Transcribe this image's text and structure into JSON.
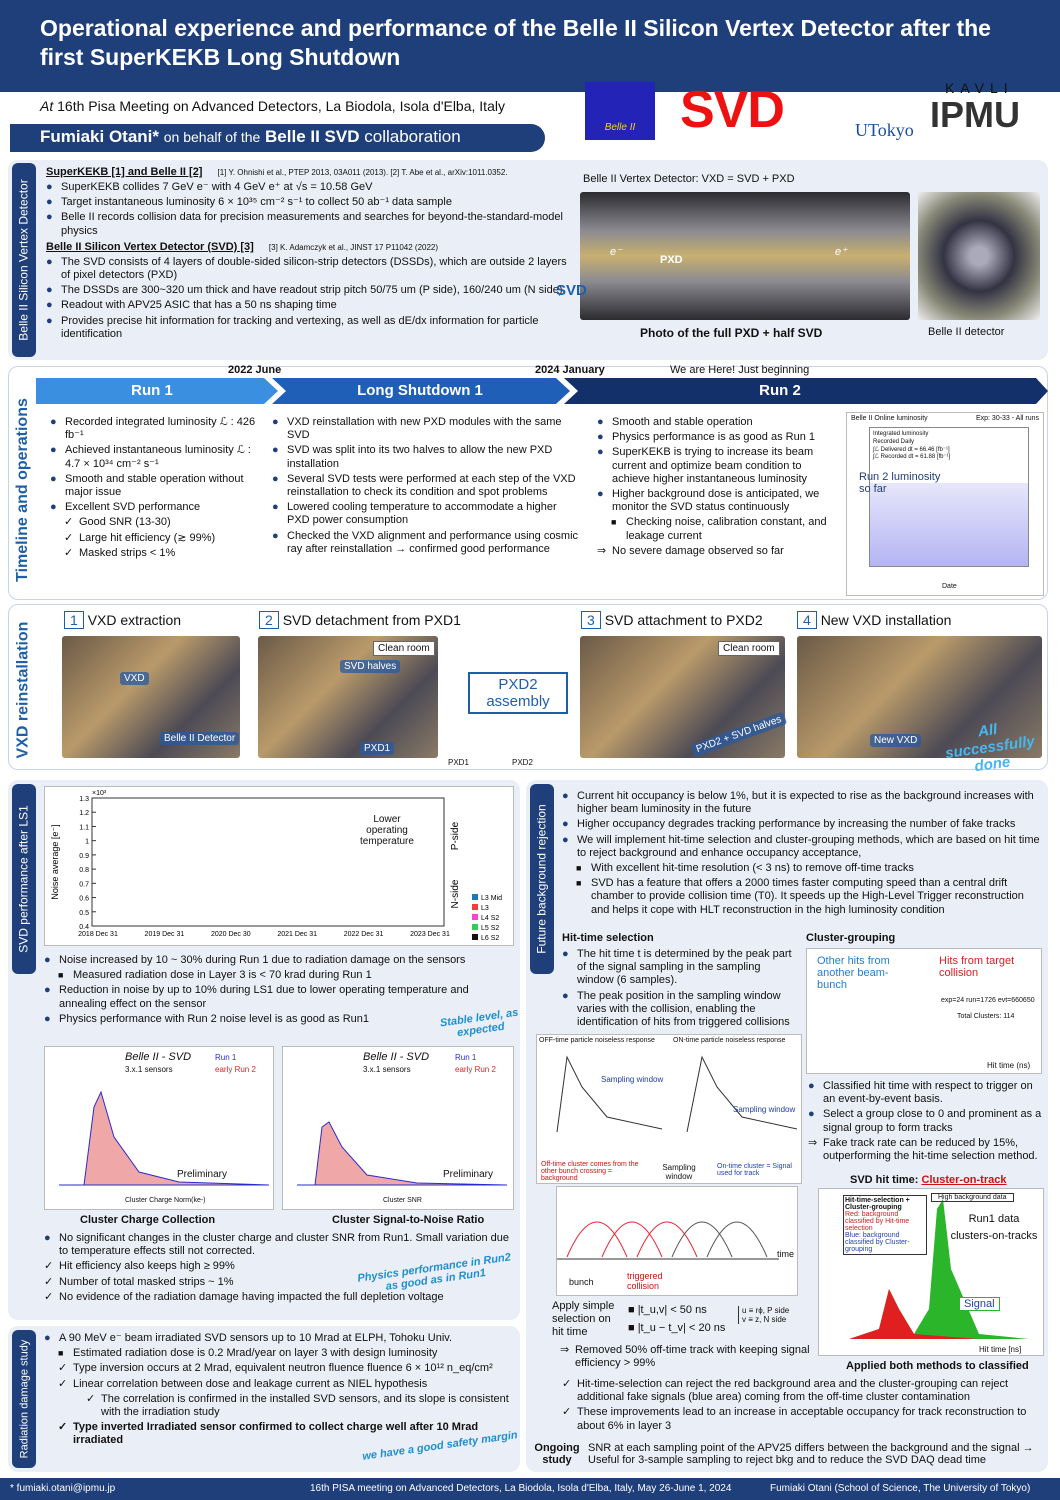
{
  "header": {
    "title": "Operational experience and performance of the Belle II Silicon Vertex Detector after the first SuperKEKB Long Shutdown",
    "venue_prefix": "At",
    "venue": "16th Pisa Meeting on Advanced Detectors, La Biodola, Isola d'Elba, Italy",
    "author": "Fumiaki Otani*",
    "on_behalf": "on behalf of the",
    "collaboration": "Belle II SVD",
    "collab_word": "collaboration",
    "logos": [
      "Belle II",
      "SVD",
      "UTokyo",
      "KAVLI",
      "IPMU"
    ]
  },
  "overview": {
    "side": "Belle II Silicon Vertex Detector",
    "heading1": "SuperKEKB [1] and Belle II [2]",
    "refs1": "[1] Y. Ohnishi et al., PTEP 2013, 03A011 (2013).   [2] T. Abe et al., arXiv:1011.0352.",
    "items1": [
      "SuperKEKB collides 7 GeV e⁻ with 4 GeV e⁺ at √s = 10.58 GeV",
      "Target instantaneous luminosity 6 × 10³⁵ cm⁻² s⁻¹ to collect 50 ab⁻¹ data sample",
      "Belle II records collision data for precision measurements and searches for beyond-the-standard-model physics"
    ],
    "heading2": "Belle II Silicon Vertex Detector (SVD) [3]",
    "refs2": "[3] K. Adamczyk et al., JINST 17 P11042 (2022)",
    "items2": [
      "The SVD consists of 4 layers of double-sided silicon-strip detectors (DSSDs), which are outside 2 layers of pixel detectors (PXD)",
      "The DSSDs are 300~320 um thick and have readout strip pitch 50/75 um (P side), 160/240 um (N side)",
      "Readout with APV25 ASIC that has a 50 ns shaping time",
      "Provides precise hit information for tracking and vertexing, as well as dE/dx information for particle identification"
    ],
    "figure_title": "Belle II Vertex Detector: VXD = SVD + PXD",
    "label_pxd": "PXD",
    "label_svd": "SVD",
    "label_em": "e⁻",
    "label_ep": "e⁺",
    "caption_photo": "Photo of the full PXD + half SVD",
    "caption_detector": "Belle II detector"
  },
  "timeline": {
    "side": "Timeline and operations",
    "date1": "2022 June",
    "date2": "2024 January",
    "here": "We are Here! Just beginning",
    "phases": [
      "Run 1",
      "Long Shutdown 1",
      "Run 2"
    ],
    "run1": [
      "Recorded integrated luminosity ℒ : 426 fb⁻¹",
      "Achieved instantaneous luminosity ℒ : 4.7 × 10³⁴ cm⁻² s⁻¹",
      "Smooth and stable operation without major issue",
      "Excellent SVD performance"
    ],
    "run1_checks": [
      "Good SNR (13-30)",
      "Large hit efficiency (≳ 99%)",
      "Masked strips < 1%"
    ],
    "ls1": [
      "VXD reinstallation with new PXD modules with the same SVD",
      "SVD was split into its two halves to allow the new PXD installation",
      "Several SVD tests were performed at each step of the VXD reinstallation to check its condition and spot problems",
      "Lowered cooling temperature to accommodate a higher PXD power consumption",
      "Checked the VXD alignment and performance using cosmic ray after reinstallation → confirmed good performance"
    ],
    "run2": [
      "Smooth and stable operation",
      "Physics performance is as good as Run 1",
      "SuperKEKB is trying to increase its beam current and optimize beam condition to achieve higher instantaneous luminosity",
      "Higher background dose is anticipated, we monitor the SVD status continuously"
    ],
    "run2_sub": [
      "Checking noise, calibration constant, and leakage current"
    ],
    "run2_note": [
      "No severe damage observed so far"
    ],
    "lumi_title": "Belle II Online luminosity",
    "lumi_exp": "Exp: 30-33 - All runs",
    "lumi_legend": [
      "Integrated luminosity",
      "Recorded Daily",
      "∫ℒ Delivered dt = 66.46 [fb⁻¹]",
      "∫ℒ Recorded dt = 61.88 [fb⁻¹]"
    ],
    "lumi_note": "Run 2 luminosity so far",
    "lumi_xlabel": "Date"
  },
  "reinstall": {
    "side": "VXD reinstallation",
    "steps": [
      {
        "num": "1",
        "label": "VXD extraction"
      },
      {
        "num": "2",
        "label": "SVD detachment from PXD1"
      },
      {
        "num": "3",
        "label": "SVD attachment to PXD2"
      },
      {
        "num": "4",
        "label": "New VXD installation"
      }
    ],
    "photo1": [
      "VXD",
      "Belle II Detector"
    ],
    "photo2": [
      "Clean room",
      "SVD halves",
      "PXD1"
    ],
    "assembly": "PXD2 assembly",
    "assembly_labels": [
      "PXD1",
      "PXD2"
    ],
    "photo3": [
      "Clean room",
      "PXD2 + SVD halves"
    ],
    "photo4": [
      "New VXD"
    ],
    "done": "All successfully done"
  },
  "performance": {
    "side": "SVD performance after LS1",
    "noise_ylabel": "Noise average [e⁻]",
    "noise_scale": "×10³",
    "noise_yticks": [
      0.4,
      0.5,
      0.6,
      0.7,
      0.8,
      0.9,
      1,
      1.1,
      1.2,
      1.3
    ],
    "noise_years": [
      "2018 Dec 31",
      "2019 Dec 31",
      "2020 Dec 30",
      "2021 Dec 31",
      "2022 Dec 31",
      "2023 Dec 31"
    ],
    "noise_note": "Lower operating temperature",
    "p_side": "P-side",
    "n_side": "N-side",
    "noise_legend": [
      {
        "name": "L3 Mid",
        "color": "#1f77b4"
      },
      {
        "name": "L3",
        "color": "#e8433c"
      },
      {
        "name": "L4 S2",
        "color": "#ff44cc"
      },
      {
        "name": "L5 S2",
        "color": "#33cc55"
      },
      {
        "name": "L6 S2",
        "color": "#111111"
      }
    ],
    "items1": [
      "Noise increased by 10 ~ 30% during Run 1 due to radiation damage on the sensors"
    ],
    "items1_sub": [
      "Measured radiation dose in Layer 3 is < 70 krad during Run 1"
    ],
    "items2": [
      "Reduction in noise by up to 10% during LS1 due to lower operating temperature and annealing effect on the sensor",
      "Physics performance with Run 2 noise level is as good as Run1"
    ],
    "stable_note": "Stable level, as expected",
    "hist_title": "Belle II - SVD",
    "hist_sensors": "3.x.1 sensors",
    "hist_legend": [
      "Run 1",
      "early Run 2"
    ],
    "preliminary": "Preliminary",
    "hist1_xlabel": "Cluster Charge Norm(ke-)",
    "hist2_xlabel": "Cluster SNR",
    "caption1": "Cluster Charge Collection",
    "caption2": "Cluster Signal-to-Noise Ratio",
    "items3": [
      "No significant changes in the cluster charge and cluster SNR from Run1. Small variation due to temperature effects still not corrected."
    ],
    "checks": [
      "Hit efficiency also keeps high ≥ 99%",
      "Number of total masked strips ~ 1%",
      "No evidence of the radiation damage having impacted the full depletion voltage"
    ],
    "physics_note": "Physics performance in Run2 as good as in Run1"
  },
  "future": {
    "side": "Future background rejection",
    "items": [
      "Current hit occupancy is below 1%, but it is expected to rise as the background increases with higher beam luminosity in the future",
      "Higher occupancy degrades tracking performance by increasing the number of fake tracks",
      "We will implement hit-time selection and cluster-grouping methods, which are based on hit time to reject background and enhance occupancy acceptance,"
    ],
    "items_sub": [
      "With excellent hit-time resolution (< 3 ns) to remove off-time tracks",
      "SVD has a feature that offers a 2000 times faster computing speed than a central drift chamber to provide collision time (T0). It speeds up the High-Level Trigger reconstruction and helps it cope with HLT reconstruction in the high luminosity condition"
    ],
    "hit_heading": "Hit-time selection",
    "hit_items": [
      "The hit time t is determined by the peak part of the signal sampling in the sampling window (6 samples).",
      "The peak position in the sampling window varies with the collision, enabling the identification of hits from triggered collisions"
    ],
    "off_title": "OFF-time particle noiseless response",
    "on_title": "ON-time particle noiseless response",
    "sampling_window": "Sampling window",
    "off_note": "Off-time cluster comes from the other bunch crossing = background",
    "on_note": "On-time cluster = Signal used for track",
    "bunch": "bunch",
    "triggered": "triggered collision",
    "time": "time",
    "apply": "Apply simple selection on hit time",
    "cuts": [
      "|t_u,v| < 50 ns",
      "|t_u − t_v| < 20 ns"
    ],
    "uv": [
      "u ≡ rϕ, P side",
      "v ≡ z, N side"
    ],
    "removed": [
      "Removed 50% off-time track with keeping signal efficiency > 99%"
    ],
    "cg_heading": "Cluster-grouping",
    "cg_notes": [
      "Other hits from another beam-bunch",
      "Hits from target collision"
    ],
    "cg_info": [
      "exp=24 run=1726 evt=660650",
      "Total Clusters: 114"
    ],
    "cg_xlabel": "Hit time (ns)",
    "cg_items": [
      "Classified hit time with respect to trigger on an event-by-event basis.",
      "Select a group close to 0 and prominent as a signal group to form tracks"
    ],
    "cg_arrow": [
      "Fake track rate can be reduced by 15%, outperforming the hit-time selection method."
    ],
    "hittime_title": "SVD hit time:",
    "hittime_link": "Cluster-on-track",
    "hittime_legend": [
      "Hit-time-selection + Cluster-grouping",
      "Red: background classified by Hit-time selection",
      "Blue: background classified by Cluster-grouping"
    ],
    "hittime_bkg": "High background data",
    "hittime_run": "Run1 data clusters-on-tracks",
    "hittime_signal": "Signal",
    "hittime_xlabel": "Hit time [ns]",
    "hittime_caption": "Applied both methods to classified",
    "results": [
      "Hit-time-selection can reject the red background area and the cluster-grouping can reject additional fake signals (blue area) coming from the off-time cluster contamination",
      "These improvements lead to an increase in acceptable occupancy for track reconstruction to about 6% in layer 3"
    ],
    "ongoing": "Ongoing study",
    "ongoing_text": "SNR at each sampling point of the APV25 differs between the background and the signal → Useful for 3-sample sampling to reject bkg and to reduce the SVD DAQ dead time"
  },
  "radiation": {
    "side": "Radiation damage study",
    "items": [
      "A 90 MeV e⁻ beam irradiated SVD sensors up to 10 Mrad at ELPH, Tohoku Univ."
    ],
    "squares": [
      "Estimated radiation dose is 0.2 Mrad/year on layer 3 with design luminosity"
    ],
    "checks": [
      "Type inversion occurs at 2 Mrad, equivalent neutron fluence fluence 6 × 10¹² n_eq/cm²",
      "Linear correlation between dose and leakage current as NIEL hypothesis"
    ],
    "subchecks": [
      "The correlation is confirmed in the installed SVD sensors, and its slope is consistent with the irradiation study"
    ],
    "final": [
      "Type inverted Irradiated sensor confirmed to collect charge well after 10 Mrad irradiated"
    ],
    "margin_note": "we have a good safety margin"
  },
  "footer": {
    "email": "* fumiaki.otani@ipmu.jp",
    "meeting": "16th PISA meeting on Advanced Detectors, La Biodola, Isola d'Elba, Italy, May 26-June 1, 2024",
    "affiliation": "Fumiaki Otani (School of Science, The University of Tokyo)"
  }
}
